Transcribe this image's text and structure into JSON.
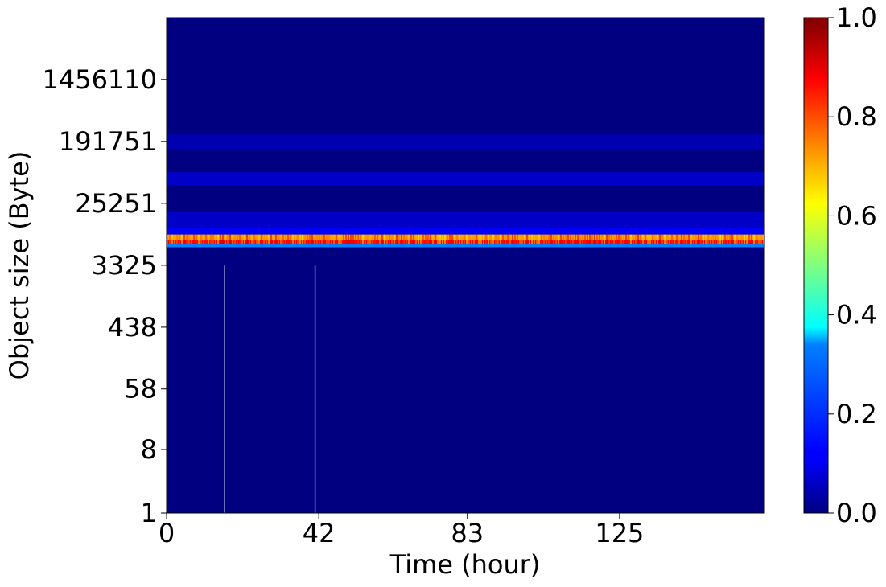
{
  "chart_data": {
    "type": "heatmap",
    "title": "",
    "xlabel": "Time (hour)",
    "ylabel": "Object size (Byte)",
    "x_ticks": [
      {
        "label": "0",
        "value": 0
      },
      {
        "label": "42",
        "value": 42
      },
      {
        "label": "83",
        "value": 83
      },
      {
        "label": "125",
        "value": 125
      }
    ],
    "xlim": [
      0,
      165
    ],
    "y_scale": "log",
    "y_ticks": [
      {
        "label": "1",
        "value": 1
      },
      {
        "label": "8",
        "value": 8
      },
      {
        "label": "58",
        "value": 58
      },
      {
        "label": "438",
        "value": 438
      },
      {
        "label": "3325",
        "value": 3325
      },
      {
        "label": "25251",
        "value": 25251
      },
      {
        "label": "191751",
        "value": 191751
      },
      {
        "label": "1456110",
        "value": 1456110
      }
    ],
    "ylim": [
      1,
      11000000
    ],
    "colorbar": {
      "range": [
        0,
        1
      ],
      "ticks": [
        "0.0",
        "0.2",
        "0.4",
        "0.6",
        "0.8",
        "1.0"
      ],
      "colormap": "jet"
    },
    "bands": [
      {
        "y_from": 9100,
        "y_to": 11400,
        "value": 0.12
      },
      {
        "y_from": 7600,
        "y_to": 9100,
        "value": 0.72
      },
      {
        "y_from": 6600,
        "y_to": 7600,
        "value": 0.88
      },
      {
        "y_from": 6000,
        "y_to": 6600,
        "value": 0.25
      },
      {
        "y_from": 11400,
        "y_to": 19000,
        "value": 0.07
      },
      {
        "y_from": 45000,
        "y_to": 70000,
        "value": 0.07
      },
      {
        "y_from": 150000,
        "y_to": 240000,
        "value": 0.05
      }
    ],
    "vertical_lines": [
      {
        "x": 16,
        "y_from": 1,
        "y_to": 3300
      },
      {
        "x": 41,
        "y_from": 1,
        "y_to": 3300
      }
    ]
  }
}
